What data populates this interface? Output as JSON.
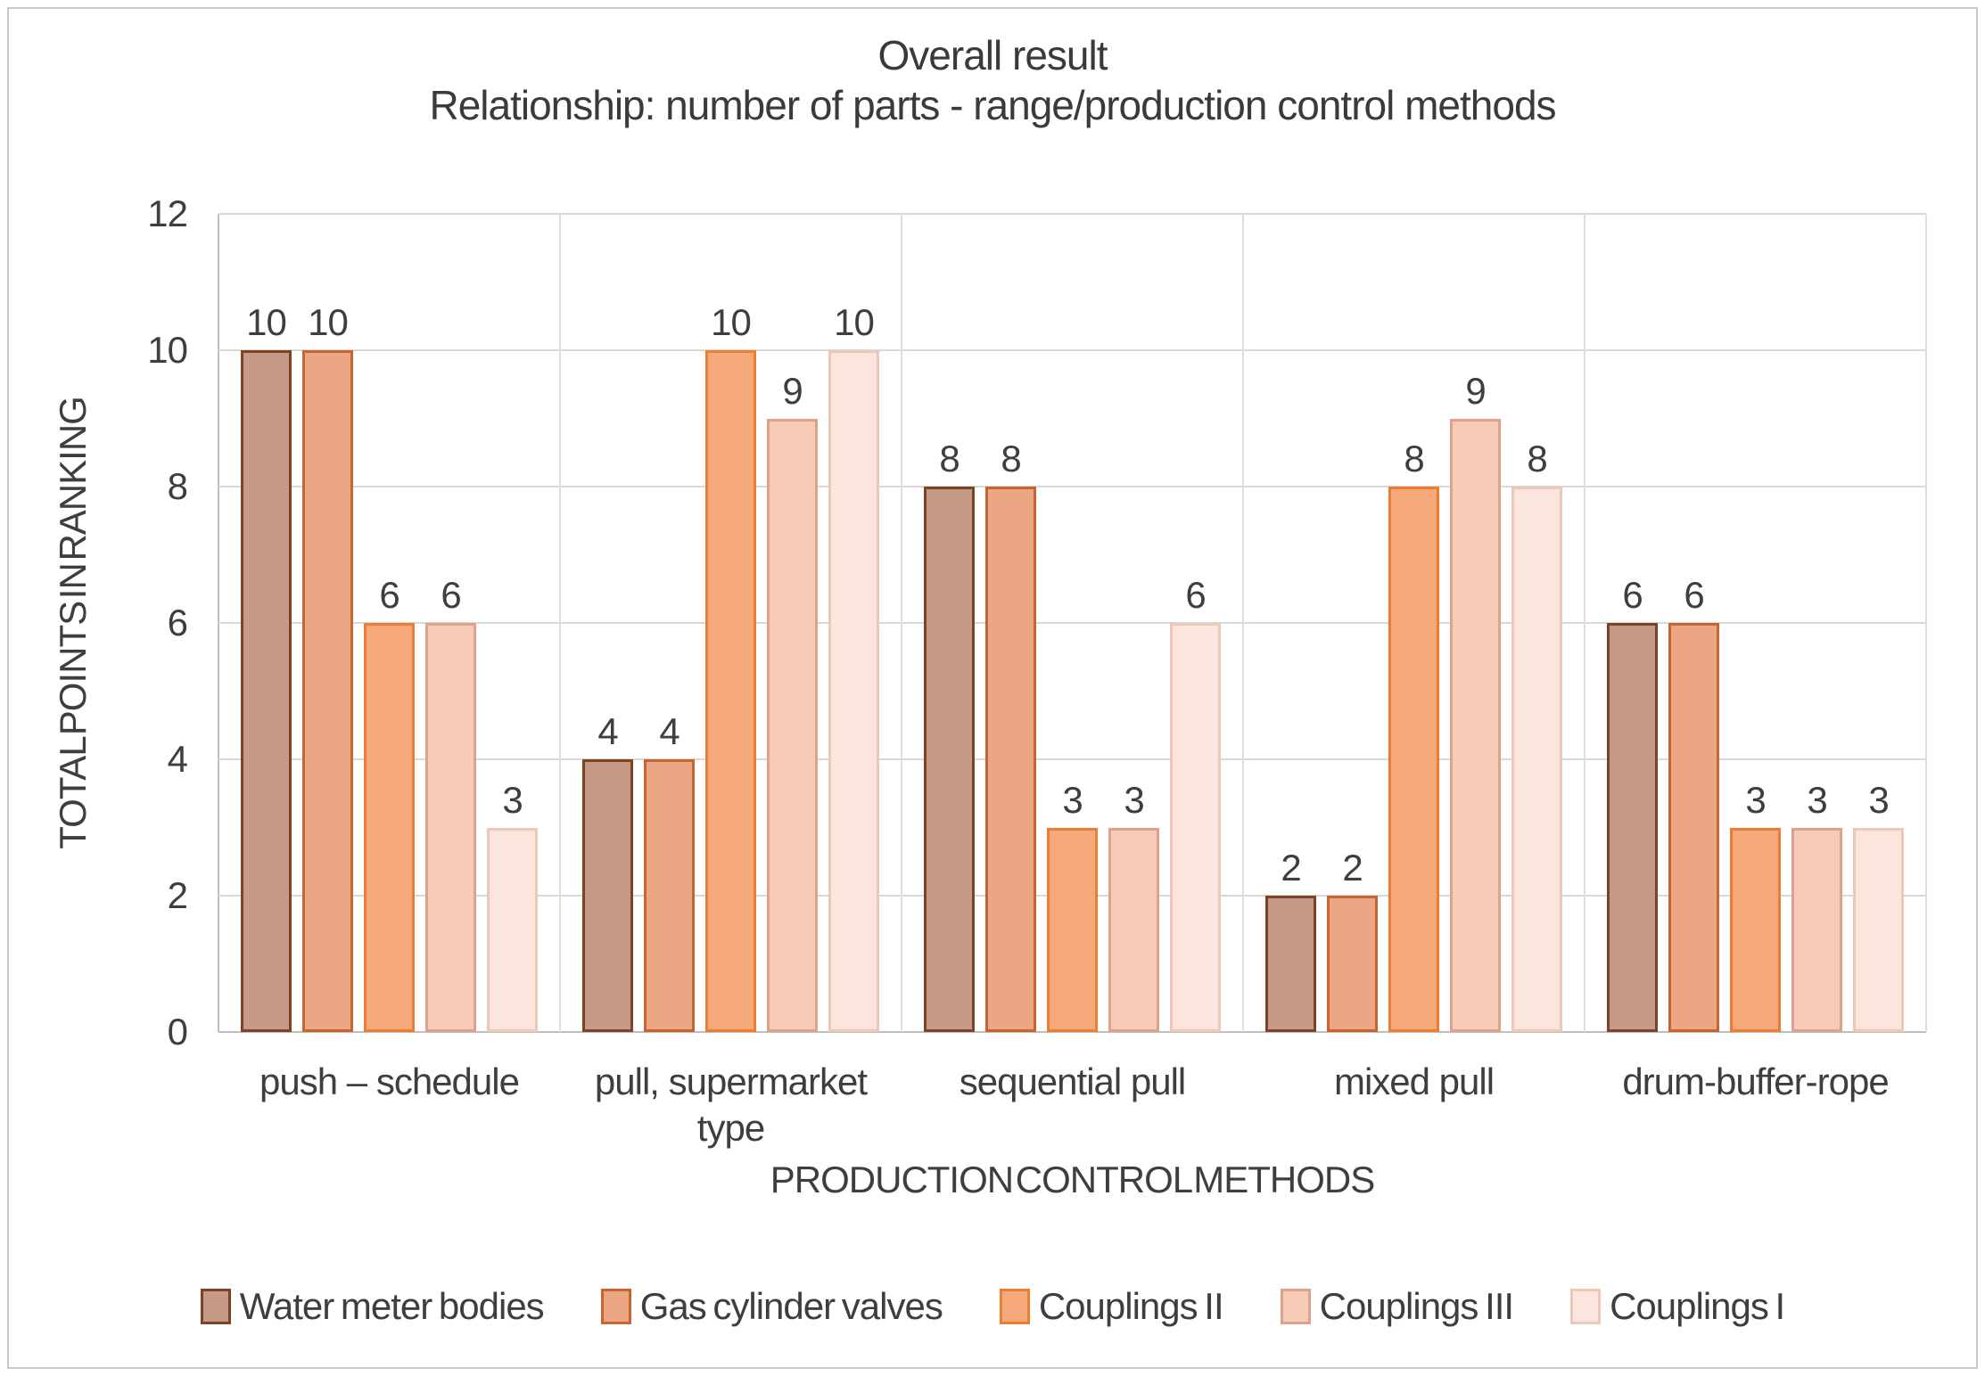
{
  "chart_data": {
    "type": "bar",
    "title": "Overall result",
    "subtitle": "Relationship:  number of parts - range/production control methods",
    "xlabel": "PRODUCTION CONTROL METHODS",
    "ylabel": "TOTAL POINTS IN RANKING",
    "categories": [
      "push – schedule",
      "pull, supermarket type",
      "sequential pull",
      "mixed pull",
      "drum-buffer-rope"
    ],
    "series": [
      {
        "name": "Water meter bodies",
        "fill": "#C79A87",
        "border": "#7C4425",
        "values": [
          10,
          4,
          8,
          2,
          6
        ]
      },
      {
        "name": "Gas cylinder valves",
        "fill": "#EBA785",
        "border": "#C96330",
        "values": [
          10,
          4,
          8,
          2,
          6
        ]
      },
      {
        "name": "Couplings II",
        "fill": "#F5A97B",
        "border": "#ED7D31",
        "values": [
          6,
          10,
          3,
          8,
          3
        ]
      },
      {
        "name": "Couplings III",
        "fill": "#F7CBB7",
        "border": "#DCA28C",
        "values": [
          6,
          9,
          3,
          9,
          3
        ]
      },
      {
        "name": "Couplings I",
        "fill": "#FBE5DC",
        "border": "#EDC7B9",
        "values": [
          3,
          10,
          6,
          8,
          3
        ]
      }
    ],
    "ylim": [
      0,
      12
    ],
    "y_ticks": [
      0,
      2,
      4,
      6,
      8,
      10,
      12
    ],
    "grid": "horizontal-major",
    "legend_position": "bottom",
    "data_labels": true
  },
  "colors": {
    "background": "#FFFFFF",
    "frame_border": "#C9C9C9",
    "gridline": "#D9D9D9",
    "axis_line": "#BFBFBF",
    "text": "#3E3E3E"
  }
}
